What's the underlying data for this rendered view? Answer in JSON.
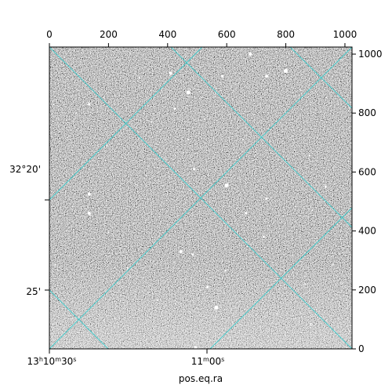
{
  "chart_data": {
    "type": "image",
    "xlabel": "pos.eq.ra",
    "ylabel": "",
    "pixel_axis": {
      "xlim": [
        0,
        1024
      ],
      "ylim": [
        0,
        1024
      ],
      "x_ticks": [
        0,
        200,
        400,
        600,
        800,
        1000
      ],
      "x_tick_labels": [
        "0",
        "200",
        "400",
        "600",
        "800",
        "1000"
      ],
      "y_ticks": [
        0,
        200,
        400,
        600,
        800,
        1000
      ],
      "y_tick_labels": [
        "0",
        "200",
        "400",
        "600",
        "800",
        "1000"
      ]
    },
    "world_axes": {
      "ra_tick_labels": [
        {
          "hours": "13",
          "minutes": "10",
          "seconds": "30"
        },
        {
          "minutes": "11",
          "seconds": "00"
        }
      ],
      "dec_tick_labels": [
        {
          "degrees": "32",
          "arcmin": "20"
        },
        {
          "arcmin": "25"
        }
      ]
    },
    "grid": true,
    "grid_color": "#33cccc",
    "colormap": "gray",
    "stars": [
      [
        680,
        1000,
        2
      ],
      [
        800,
        943,
        2.5
      ],
      [
        735,
        925,
        2
      ],
      [
        585,
        925,
        1.5
      ],
      [
        410,
        935,
        2
      ],
      [
        470,
        870,
        2.5
      ],
      [
        135,
        830,
        1.5
      ],
      [
        425,
        815,
        1.5
      ],
      [
        525,
        780,
        1
      ],
      [
        470,
        710,
        1
      ],
      [
        195,
        690,
        1
      ],
      [
        490,
        610,
        1.5
      ],
      [
        600,
        555,
        2.5
      ],
      [
        135,
        525,
        2
      ],
      [
        735,
        510,
        1.5
      ],
      [
        935,
        550,
        1.5
      ],
      [
        665,
        460,
        1.5
      ],
      [
        135,
        460,
        2
      ],
      [
        200,
        395,
        1
      ],
      [
        725,
        380,
        1.5
      ],
      [
        445,
        330,
        2
      ],
      [
        485,
        320,
        1.5
      ],
      [
        265,
        275,
        1
      ],
      [
        595,
        265,
        1
      ],
      [
        535,
        210,
        1.5
      ],
      [
        865,
        220,
        1
      ],
      [
        565,
        140,
        2.5
      ],
      [
        770,
        120,
        1
      ],
      [
        885,
        85,
        1
      ],
      [
        495,
        5,
        2
      ],
      [
        960,
        285,
        1
      ],
      [
        880,
        655,
        1
      ],
      [
        305,
        920,
        1
      ],
      [
        345,
        770,
        1
      ],
      [
        890,
        470,
        1
      ],
      [
        365,
        165,
        1
      ],
      [
        90,
        800,
        1
      ],
      [
        15,
        830,
        1
      ],
      [
        20,
        285,
        1
      ],
      [
        655,
        710,
        1
      ]
    ]
  }
}
